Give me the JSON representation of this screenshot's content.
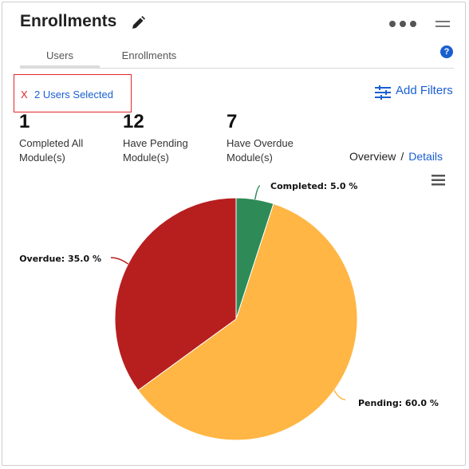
{
  "widget": {
    "title": "Enrollments",
    "tabs": [
      {
        "label": "Users"
      },
      {
        "label": "Enrollments"
      }
    ],
    "help_label": "?"
  },
  "selection": {
    "clear_label": "X",
    "text": "2 Users Selected"
  },
  "filters": {
    "label": "Add Filters"
  },
  "stats": [
    {
      "value": "1",
      "label_line1": "Completed All",
      "label_line2": "Module(s)"
    },
    {
      "value": "12",
      "label_line1": "Have Pending",
      "label_line2": "Module(s)"
    },
    {
      "value": "7",
      "label_line1": "Have Overdue",
      "label_line2": "Module(s)"
    }
  ],
  "view_toggle": {
    "overview": "Overview",
    "separator": "/",
    "details": "Details"
  },
  "chart_data": {
    "type": "pie",
    "slices": [
      {
        "label": "Completed: 5.0 %",
        "value": 5.0,
        "color": "#2e8b57"
      },
      {
        "label": "Pending: 60.0 %",
        "value": 60.0,
        "color": "#ffb644"
      },
      {
        "label": "Overdue: 35.0 %",
        "value": 35.0,
        "color": "#b71f1f"
      }
    ]
  }
}
